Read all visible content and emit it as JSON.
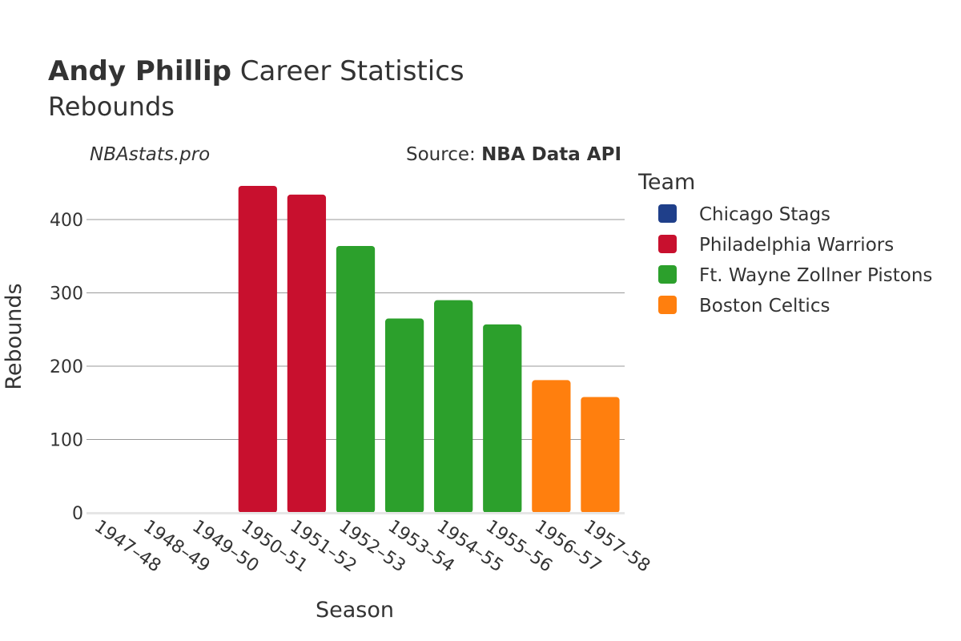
{
  "header": {
    "title_bold": "Andy Phillip",
    "title_rest": " Career Statistics",
    "subtitle": "Rebounds",
    "watermark": "NBAstats.pro",
    "source_prefix": "Source: ",
    "source_name": "NBA Data API"
  },
  "legend": {
    "title": "Team",
    "items": [
      {
        "label": "Chicago Stags",
        "color": "#1f3f8a"
      },
      {
        "label": "Philadelphia Warriors",
        "color": "#c8102e"
      },
      {
        "label": "Ft. Wayne Zollner Pistons",
        "color": "#2ca02c"
      },
      {
        "label": "Boston Celtics",
        "color": "#ff7f0e"
      }
    ]
  },
  "chart_data": {
    "type": "bar",
    "title": "Andy Phillip Career Statistics",
    "subtitle": "Rebounds",
    "xlabel": "Season",
    "ylabel": "Rebounds",
    "ylim": [
      0,
      470
    ],
    "yticks": [
      0,
      100,
      200,
      300,
      400
    ],
    "grid": true,
    "legend_placement": "right",
    "categories": [
      "1947–48",
      "1948–49",
      "1949–50",
      "1950–51",
      "1951–52",
      "1952–53",
      "1953–54",
      "1954–55",
      "1955–56",
      "1956–57",
      "1957–58"
    ],
    "bars": [
      {
        "season": "1947–48",
        "team": "Chicago Stags",
        "value": 0
      },
      {
        "season": "1948–49",
        "team": "Chicago Stags",
        "value": 0
      },
      {
        "season": "1949–50",
        "team": "Chicago Stags",
        "value": 0
      },
      {
        "season": "1950–51",
        "team": "Philadelphia Warriors",
        "value": 446
      },
      {
        "season": "1951–52",
        "team": "Philadelphia Warriors",
        "value": 434
      },
      {
        "season": "1952–53",
        "team": "Ft. Wayne Zollner Pistons",
        "value": 364
      },
      {
        "season": "1953–54",
        "team": "Ft. Wayne Zollner Pistons",
        "value": 265
      },
      {
        "season": "1954–55",
        "team": "Ft. Wayne Zollner Pistons",
        "value": 290
      },
      {
        "season": "1955–56",
        "team": "Ft. Wayne Zollner Pistons",
        "value": 257
      },
      {
        "season": "1956–57",
        "team": "Boston Celtics",
        "value": 181
      },
      {
        "season": "1957–58",
        "team": "Boston Celtics",
        "value": 158
      }
    ]
  }
}
